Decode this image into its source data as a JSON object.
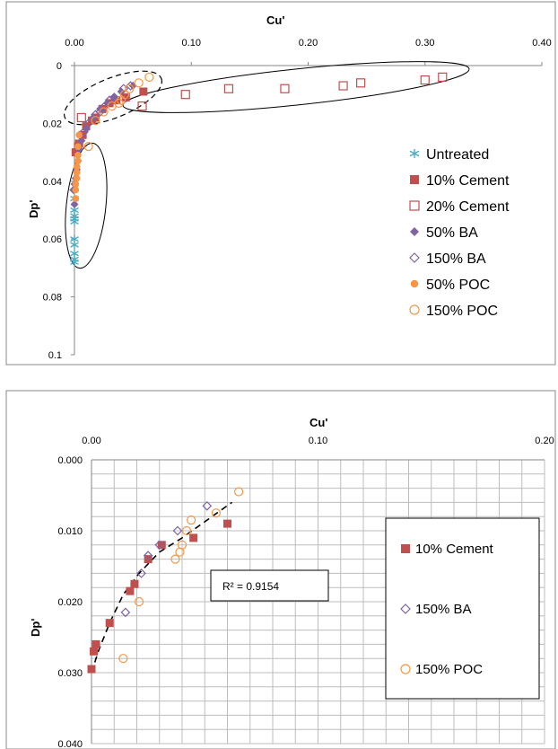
{
  "chart_data": [
    {
      "type": "scatter",
      "xlabel": "Cu'",
      "ylabel": "Dp'",
      "xlim": [
        0,
        0.4
      ],
      "ylim": [
        0,
        0.1
      ],
      "y_reversed": true,
      "x_axis_position": "top",
      "x_ticks": [
        "0.00",
        "0.10",
        "0.20",
        "0.30",
        "0.40"
      ],
      "y_ticks": [
        "0",
        "0.02",
        "0.04",
        "0.06",
        "0.08",
        "0.1"
      ],
      "grid": false,
      "legend_position": "right",
      "series": [
        {
          "name": "Untreated",
          "marker": "asterisk",
          "color": "#4bacc6",
          "x": [
            0.0,
            0.0,
            0.0,
            0.0,
            0.0,
            0.0,
            0.0,
            0.0,
            0.0,
            0.0
          ],
          "y": [
            0.046,
            0.05,
            0.052,
            0.053,
            0.054,
            0.06,
            0.062,
            0.065,
            0.067,
            0.068
          ]
        },
        {
          "name": "10% Cement",
          "marker": "square-filled",
          "color": "#c0504d",
          "x": [
            0.059,
            0.044,
            0.036,
            0.03,
            0.024,
            0.018,
            0.015,
            0.01,
            0.007,
            0.004,
            0.003,
            0.001
          ],
          "y": [
            0.009,
            0.011,
            0.012,
            0.013,
            0.015,
            0.018,
            0.019,
            0.021,
            0.024,
            0.027,
            0.028,
            0.03
          ]
        },
        {
          "name": "20% Cement",
          "marker": "square-open",
          "color": "#c0504d",
          "x": [
            0.315,
            0.3,
            0.245,
            0.23,
            0.18,
            0.132,
            0.095,
            0.058,
            0.006
          ],
          "y": [
            0.004,
            0.005,
            0.006,
            0.007,
            0.008,
            0.008,
            0.01,
            0.014,
            0.018
          ]
        },
        {
          "name": "50% BA",
          "marker": "diamond-filled",
          "color": "#8064a2",
          "x": [
            0.05,
            0.04,
            0.034,
            0.028,
            0.022,
            0.016,
            0.01,
            0.006,
            0.004,
            0.003,
            0.002,
            0.001,
            0.0,
            -0.001,
            0.0
          ],
          "y": [
            0.007,
            0.009,
            0.011,
            0.013,
            0.015,
            0.018,
            0.022,
            0.026,
            0.029,
            0.033,
            0.036,
            0.039,
            0.041,
            0.043,
            0.048
          ]
        },
        {
          "name": "150% BA",
          "marker": "diamond-open",
          "color": "#8064a2",
          "x": [
            0.048,
            0.042,
            0.034,
            0.03,
            0.026,
            0.022,
            0.018,
            0.012,
            0.008
          ],
          "y": [
            0.007,
            0.008,
            0.011,
            0.012,
            0.014,
            0.016,
            0.017,
            0.02,
            0.023
          ]
        },
        {
          "name": "50% POC",
          "marker": "circle-filled",
          "color": "#f79646",
          "x": [
            0.004,
            0.003,
            0.003,
            0.003,
            0.002,
            0.002,
            0.002,
            0.001,
            0.001,
            0.001
          ],
          "y": [
            0.024,
            0.028,
            0.031,
            0.033,
            0.035,
            0.037,
            0.039,
            0.041,
            0.043,
            0.046
          ]
        },
        {
          "name": "150% POC",
          "marker": "circle-open",
          "color": "#f79646",
          "x": [
            0.064,
            0.055,
            0.047,
            0.043,
            0.04,
            0.038,
            0.032,
            0.025,
            0.018,
            0.012
          ],
          "y": [
            0.004,
            0.006,
            0.008,
            0.01,
            0.012,
            0.013,
            0.014,
            0.016,
            0.019,
            0.028
          ]
        }
      ]
    },
    {
      "type": "scatter",
      "xlabel": "Cu'",
      "ylabel": "Dp'",
      "xlim": [
        0,
        0.2
      ],
      "ylim": [
        0,
        0.04
      ],
      "y_reversed": true,
      "x_axis_position": "top",
      "x_ticks": [
        "0.00",
        "0.10",
        "0.20"
      ],
      "y_ticks": [
        "0.000",
        "0.010",
        "0.020",
        "0.030",
        "0.040"
      ],
      "grid": true,
      "legend_position": "right",
      "annotation": "R² = 0.9154",
      "series": [
        {
          "name": "10% Cement",
          "marker": "square-filled",
          "color": "#c0504d",
          "x": [
            0.06,
            0.045,
            0.031,
            0.025,
            0.019,
            0.017,
            0.008,
            0.002,
            0.001,
            0.0
          ],
          "y": [
            0.009,
            0.011,
            0.012,
            0.014,
            0.0175,
            0.0185,
            0.023,
            0.026,
            0.027,
            0.0295
          ]
        },
        {
          "name": "150% BA",
          "marker": "diamond-open",
          "color": "#8064a2",
          "x": [
            0.051,
            0.038,
            0.03,
            0.025,
            0.022,
            0.015
          ],
          "y": [
            0.0065,
            0.01,
            0.012,
            0.0135,
            0.016,
            0.0215
          ]
        },
        {
          "name": "150% POC",
          "marker": "circle-open",
          "color": "#f79646",
          "x": [
            0.065,
            0.055,
            0.044,
            0.042,
            0.04,
            0.039,
            0.037,
            0.021,
            0.014
          ],
          "y": [
            0.0045,
            0.0075,
            0.0085,
            0.01,
            0.012,
            0.013,
            0.014,
            0.02,
            0.028
          ]
        }
      ],
      "trendline": {
        "style": "dashed",
        "color": "#000000",
        "x": [
          0.0,
          0.003,
          0.008,
          0.014,
          0.021,
          0.03,
          0.04,
          0.051,
          0.062
        ],
        "y": [
          0.03,
          0.027,
          0.023,
          0.019,
          0.016,
          0.013,
          0.011,
          0.0085,
          0.006
        ]
      }
    }
  ]
}
